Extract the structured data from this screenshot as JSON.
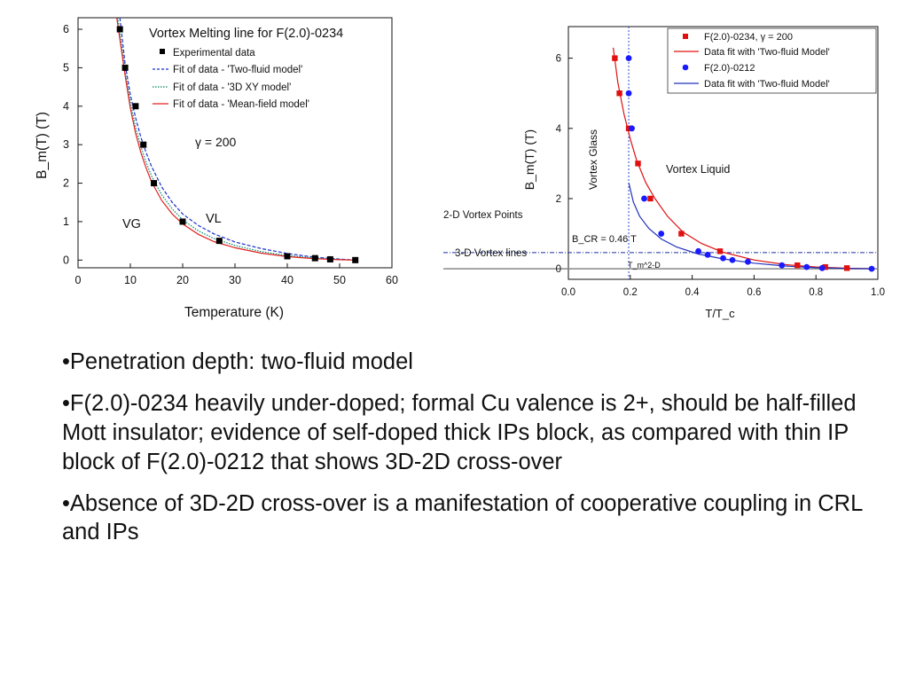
{
  "chart_data": [
    {
      "type": "scatter",
      "title": "Vortex Melting line for F(2.0)-0234",
      "xlabel": "Temperature (K)",
      "ylabel": "B_m(T)  (T)",
      "xlim": [
        0,
        60
      ],
      "ylim": [
        -0.2,
        6.3
      ],
      "x_ticks": [
        "0",
        "10",
        "20",
        "30",
        "40",
        "50",
        "60"
      ],
      "y_ticks": [
        "0",
        "1",
        "2",
        "3",
        "4",
        "5",
        "6"
      ],
      "grid": false,
      "legend_position": "top-right",
      "annotations": [
        "γ = 200",
        "VG",
        "VL"
      ],
      "legend": [
        {
          "label": "Experimental data",
          "marker": "square",
          "color": "#000000"
        },
        {
          "label": "Fit of data - 'Two-fluid model'",
          "style": "dashed",
          "color": "#1a2fcc"
        },
        {
          "label": "Fit of data - '3D XY model'",
          "style": "dotted",
          "color": "#008866"
        },
        {
          "label": "Fit of data - 'Mean-field model'",
          "style": "solid",
          "color": "#e02020"
        }
      ],
      "series": [
        {
          "name": "Experimental data",
          "x": [
            8,
            9,
            11,
            12.5,
            14.5,
            20,
            27,
            40,
            45.3,
            48.2,
            53
          ],
          "y": [
            6,
            5,
            4,
            3,
            2,
            1,
            0.5,
            0.1,
            0.05,
            0.02,
            0
          ]
        },
        {
          "name": "Fit of data - 'Two-fluid model'",
          "x": [
            8,
            9,
            10,
            11,
            12,
            13,
            14,
            16,
            18,
            20,
            23,
            26,
            30,
            35,
            40,
            45,
            50,
            53
          ],
          "y": [
            6.3,
            5.1,
            4.3,
            3.7,
            3.2,
            2.8,
            2.45,
            1.9,
            1.5,
            1.2,
            0.9,
            0.68,
            0.47,
            0.3,
            0.17,
            0.08,
            0.025,
            0
          ]
        },
        {
          "name": "Fit of data - '3D XY model'",
          "x": [
            7.6,
            9,
            10,
            11,
            12,
            13,
            14,
            16,
            18,
            20,
            23,
            26,
            30,
            35,
            40,
            45,
            50,
            53
          ],
          "y": [
            6.3,
            4.9,
            4.1,
            3.45,
            2.95,
            2.55,
            2.2,
            1.7,
            1.33,
            1.05,
            0.76,
            0.56,
            0.38,
            0.22,
            0.12,
            0.055,
            0.015,
            0
          ]
        },
        {
          "name": "Fit of data - 'Mean-field model'",
          "x": [
            7.4,
            9,
            10,
            11,
            12,
            13,
            14,
            16,
            18,
            20,
            23,
            26,
            30,
            35,
            40,
            45,
            50,
            53
          ],
          "y": [
            6.3,
            4.8,
            3.95,
            3.3,
            2.8,
            2.4,
            2.05,
            1.55,
            1.2,
            0.94,
            0.67,
            0.48,
            0.32,
            0.18,
            0.09,
            0.04,
            0.01,
            0
          ]
        }
      ]
    },
    {
      "type": "scatter",
      "title": "",
      "xlabel": "T/T_c",
      "ylabel": "B_m(T)  (T)",
      "xlim": [
        0,
        1.0
      ],
      "ylim": [
        -0.3,
        6.9
      ],
      "x_ticks": [
        "0.0",
        "0.2",
        "0.4",
        "0.6",
        "0.8",
        "1.0"
      ],
      "y_ticks": [
        "0",
        "2",
        "4",
        "6"
      ],
      "grid": false,
      "legend_position": "top-right",
      "annotations": [
        "Vortex Glass",
        "Vortex Liquid",
        "B_CR = 0.46 T",
        "T_m^2-D",
        "2-D Vortex Points",
        "3-D Vortex lines"
      ],
      "legend": [
        {
          "label": "F(2.0)-0234, γ = 200",
          "marker": "square",
          "color": "#e01010"
        },
        {
          "label": "Data fit with 'Two-fluid Model'",
          "style": "solid",
          "color": "#e01010"
        },
        {
          "label": "F(2.0)-0212",
          "marker": "circle",
          "color": "#1a1aff"
        },
        {
          "label": "Data fit with 'Two-fluid Model'",
          "style": "solid",
          "color": "#2233bb"
        }
      ],
      "series": [
        {
          "name": "F(2.0)-0234, γ = 200",
          "x": [
            0.15,
            0.165,
            0.195,
            0.225,
            0.265,
            0.365,
            0.49,
            0.74,
            0.83,
            0.9
          ],
          "y": [
            6,
            5,
            4,
            3,
            2,
            1,
            0.5,
            0.1,
            0.05,
            0.02
          ]
        },
        {
          "name": "F(2.0)-0212",
          "x": [
            0.195,
            0.195,
            0.205,
            0.245,
            0.3,
            0.42,
            0.45,
            0.5,
            0.53,
            0.58,
            0.69,
            0.77,
            0.82,
            0.98
          ],
          "y": [
            6,
            5,
            4,
            2,
            1,
            0.5,
            0.4,
            0.3,
            0.25,
            0.2,
            0.1,
            0.05,
            0.02,
            0
          ]
        }
      ],
      "fit_curves": [
        {
          "color": "#e01010",
          "x": [
            0.145,
            0.16,
            0.18,
            0.2,
            0.22,
            0.25,
            0.28,
            0.32,
            0.37,
            0.43,
            0.5,
            0.6,
            0.7,
            0.8,
            0.9,
            0.99
          ],
          "y": [
            6.3,
            5.3,
            4.4,
            3.7,
            3.1,
            2.45,
            2.0,
            1.5,
            1.05,
            0.72,
            0.47,
            0.25,
            0.12,
            0.05,
            0.015,
            0
          ]
        },
        {
          "color": "#2233bb",
          "x": [
            0.195,
            0.21,
            0.23,
            0.26,
            0.3,
            0.35,
            0.42,
            0.5,
            0.6,
            0.7,
            0.8,
            0.9,
            0.99
          ],
          "y": [
            2.45,
            1.9,
            1.5,
            1.15,
            0.85,
            0.62,
            0.42,
            0.28,
            0.16,
            0.08,
            0.03,
            0.01,
            0
          ]
        }
      ],
      "reference_lines": {
        "vertical_x": 0.195,
        "horizontal_y": 0.46,
        "zero_line_y": 0
      }
    }
  ],
  "bullets": [
    "•Penetration depth: two-fluid model",
    "•F(2.0)-0234 heavily under-doped; formal Cu valence is 2+, should be half-filled Mott insulator; evidence of self-doped thick IPs block, as compared with thin IP block of F(2.0)-0212 that shows 3D-2D cross-over",
    "•Absence of 3D-2D cross-over is a manifestation of cooperative coupling in CRL and IPs"
  ]
}
